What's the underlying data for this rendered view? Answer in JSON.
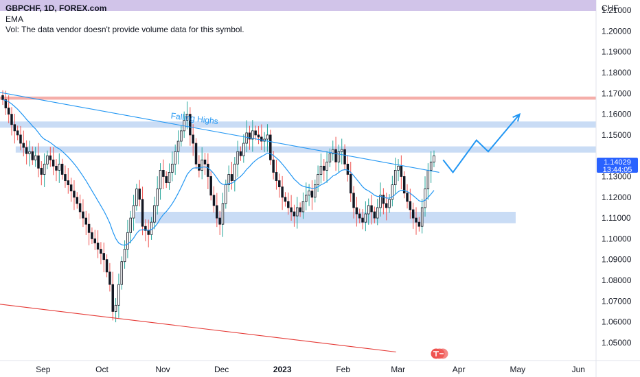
{
  "header": {
    "symbol_line": "GBPCHF, 1D, FOREX.com",
    "indicator": "EMA",
    "volume_note": "Vol: The data vendor doesn't provide volume data for this symbol."
  },
  "price_tag": {
    "price": "1.14029",
    "countdown": "13:44:05"
  },
  "colors": {
    "up": "#26a69a",
    "down": "#ef5350",
    "candle_body_up": "#ffffff",
    "candle_body_down": "#131722",
    "ema": "#2196f3",
    "zone_blue": "#bbd3f3",
    "zone_red": "#f4a5a0",
    "trend_red": "#e53935",
    "header_band": "#d1c4e9",
    "arrow": "#2196f3",
    "price_tag": "#2962ff"
  },
  "chart_data": {
    "type": "candlestick",
    "currency": "CHF",
    "y_range": [
      1.045,
      1.215
    ],
    "y_ticks": [
      "1.21000",
      "1.20000",
      "1.19000",
      "1.18000",
      "1.17000",
      "1.16000",
      "1.15000",
      "1.13000",
      "1.12000",
      "1.11000",
      "1.10000",
      "1.09000",
      "1.08000",
      "1.07000",
      "1.06000",
      "1.05000"
    ],
    "x_ticks": [
      {
        "label": "Sep",
        "x": "2022-09-01",
        "year": false
      },
      {
        "label": "Oct",
        "x": "2022-10-01",
        "year": false
      },
      {
        "label": "Nov",
        "x": "2022-11-01",
        "year": false
      },
      {
        "label": "Dec",
        "x": "2022-12-01",
        "year": false
      },
      {
        "label": "2023",
        "x": "2023-01-01",
        "year": true
      },
      {
        "label": "Feb",
        "x": "2023-02-01",
        "year": false
      },
      {
        "label": "Mar",
        "x": "2023-03-01",
        "year": false
      },
      {
        "label": "Apr",
        "x": "2023-04-01",
        "year": false
      },
      {
        "label": "May",
        "x": "2023-05-01",
        "year": false
      },
      {
        "label": "Jun",
        "x": "2023-06-01",
        "year": false
      }
    ],
    "x_range": [
      "2022-08-10",
      "2023-06-10"
    ],
    "closes": [
      1.167,
      1.163,
      1.16,
      1.155,
      1.152,
      1.15,
      1.146,
      1.144,
      1.141,
      1.142,
      1.138,
      1.14,
      1.134,
      1.131,
      1.136,
      1.14,
      1.138,
      1.135,
      1.133,
      1.136,
      1.131,
      1.128,
      1.126,
      1.123,
      1.12,
      1.117,
      1.113,
      1.11,
      1.107,
      1.103,
      1.1,
      1.098,
      1.095,
      1.093,
      1.09,
      1.084,
      1.078,
      1.065,
      1.068,
      1.078,
      1.089,
      1.095,
      1.103,
      1.11,
      1.116,
      1.124,
      1.119,
      1.106,
      1.104,
      1.102,
      1.108,
      1.116,
      1.124,
      1.133,
      1.13,
      1.127,
      1.132,
      1.136,
      1.142,
      1.147,
      1.152,
      1.157,
      1.16,
      1.15,
      1.146,
      1.136,
      1.133,
      1.138,
      1.136,
      1.13,
      1.121,
      1.116,
      1.11,
      1.107,
      1.117,
      1.126,
      1.131,
      1.128,
      1.136,
      1.142,
      1.14,
      1.146,
      1.151,
      1.148,
      1.152,
      1.15,
      1.149,
      1.147,
      1.148,
      1.15,
      1.138,
      1.132,
      1.128,
      1.125,
      1.12,
      1.118,
      1.115,
      1.113,
      1.111,
      1.115,
      1.113,
      1.118,
      1.121,
      1.123,
      1.12,
      1.126,
      1.131,
      1.135,
      1.133,
      1.137,
      1.141,
      1.143,
      1.137,
      1.142,
      1.143,
      1.136,
      1.131,
      1.122,
      1.115,
      1.112,
      1.11,
      1.108,
      1.112,
      1.116,
      1.113,
      1.11,
      1.115,
      1.121,
      1.117,
      1.115,
      1.119,
      1.126,
      1.133,
      1.135,
      1.13,
      1.122,
      1.118,
      1.114,
      1.11,
      1.108,
      1.106,
      1.115,
      1.124,
      1.133,
      1.137,
      1.14
    ],
    "ema_period": 20,
    "zones": [
      {
        "color_key": "zone_red",
        "from": 1.1685,
        "to": 1.167,
        "x_start": "2022-08-10",
        "x_end": "2023-06-10"
      },
      {
        "color_key": "zone_blue",
        "from": 1.1565,
        "to": 1.1535,
        "x_start": "2022-08-10",
        "x_end": "2023-06-10"
      },
      {
        "color_key": "zone_blue",
        "from": 1.1445,
        "to": 1.1415,
        "x_start": "2022-08-18",
        "x_end": "2023-06-10"
      },
      {
        "color_key": "zone_blue",
        "from": 1.113,
        "to": 1.1075,
        "x_start": "2022-10-18",
        "x_end": "2023-04-30"
      }
    ],
    "trendlines": [
      {
        "name": "Falling Highs",
        "color_key": "ema",
        "from": {
          "x": "2022-08-10",
          "y": 1.1705
        },
        "to": {
          "x": "2023-03-22",
          "y": 1.132
        }
      },
      {
        "color_key": "trend_red",
        "from": {
          "x": "2022-08-10",
          "y": 1.0685
        },
        "to": {
          "x": "2023-02-28",
          "y": 1.0455
        }
      }
    ],
    "projection_path": [
      {
        "x": "2023-03-24",
        "y": 1.138
      },
      {
        "x": "2023-03-29",
        "y": 1.132
      },
      {
        "x": "2023-04-10",
        "y": 1.1475
      },
      {
        "x": "2023-04-16",
        "y": 1.142
      },
      {
        "x": "2023-05-02",
        "y": 1.16
      }
    ],
    "annotations": [
      {
        "text": "Falling Highs",
        "x": "2022-11-05",
        "y": 1.158
      }
    ]
  }
}
